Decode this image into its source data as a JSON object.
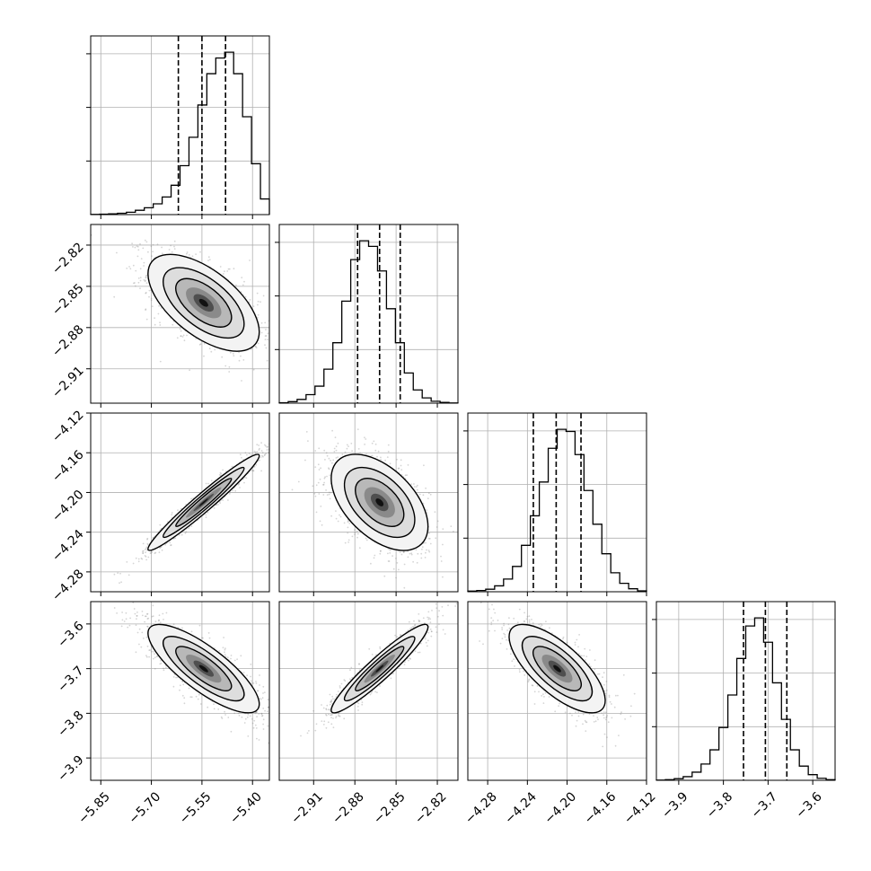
{
  "chart_data": {
    "type": "corner",
    "grid": true,
    "parameters": [
      {
        "id": "p0",
        "center": -5.545,
        "sigma": 0.075,
        "range": [
          -5.88,
          -5.35
        ],
        "ticks": [
          -5.85,
          -5.7,
          -5.55,
          -5.4
        ],
        "tick_labels": [
          "−5.85",
          "−5.70",
          "−5.55",
          "−5.40"
        ],
        "quantiles": [
          -5.62,
          -5.55,
          -5.48
        ]
      },
      {
        "id": "p1",
        "center": -2.862,
        "sigma": 0.016,
        "range": [
          -2.935,
          -2.805
        ],
        "ticks": [
          -2.91,
          -2.88,
          -2.85,
          -2.82
        ],
        "tick_labels": [
          "−2.91",
          "−2.88",
          "−2.85",
          "−2.82"
        ],
        "quantiles": [
          -2.878,
          -2.862,
          -2.847
        ]
      },
      {
        "id": "p2",
        "center": -4.21,
        "sigma": 0.022,
        "range": [
          -4.3,
          -4.12
        ],
        "ticks": [
          -4.28,
          -4.24,
          -4.2,
          -4.16,
          -4.12
        ],
        "tick_labels": [
          "−4.28",
          "−4.24",
          "−4.20",
          "−4.16",
          "−4.12"
        ],
        "quantiles": [
          -4.234,
          -4.211,
          -4.186
        ]
      },
      {
        "id": "p3",
        "center": -3.7,
        "sigma": 0.045,
        "range": [
          -3.95,
          -3.55
        ],
        "ticks": [
          -3.9,
          -3.8,
          -3.7,
          -3.6
        ],
        "tick_labels": [
          "−3.9",
          "−3.8",
          "−3.7",
          "−3.6"
        ],
        "quantiles": [
          -3.755,
          -3.706,
          -3.658
        ]
      }
    ],
    "histograms": [
      {
        "param": 0,
        "bins": 20,
        "counts": [
          1,
          2,
          4,
          7,
          12,
          22,
          35,
          55,
          90,
          150,
          250,
          395,
          560,
          720,
          800,
          830,
          720,
          500,
          260,
          80
        ]
      },
      {
        "param": 1,
        "bins": 20,
        "counts": [
          2,
          8,
          20,
          45,
          90,
          180,
          320,
          540,
          760,
          860,
          830,
          700,
          500,
          320,
          160,
          70,
          28,
          10,
          4,
          1
        ]
      },
      {
        "param": 2,
        "bins": 20,
        "counts": [
          3,
          6,
          12,
          28,
          60,
          120,
          220,
          360,
          520,
          680,
          770,
          760,
          650,
          480,
          320,
          180,
          90,
          40,
          14,
          4
        ]
      },
      {
        "param": 3,
        "bins": 20,
        "counts": [
          1,
          3,
          8,
          18,
          40,
          80,
          150,
          260,
          420,
          600,
          760,
          800,
          680,
          480,
          300,
          150,
          70,
          28,
          10,
          3
        ]
      }
    ],
    "pairs": [
      {
        "x": 0,
        "y": 1,
        "correlation": -0.6
      },
      {
        "x": 0,
        "y": 2,
        "correlation": 0.97
      },
      {
        "x": 1,
        "y": 2,
        "correlation": -0.5
      },
      {
        "x": 0,
        "y": 3,
        "correlation": -0.8
      },
      {
        "x": 1,
        "y": 3,
        "correlation": 0.94
      },
      {
        "x": 2,
        "y": 3,
        "correlation": -0.72
      }
    ]
  }
}
